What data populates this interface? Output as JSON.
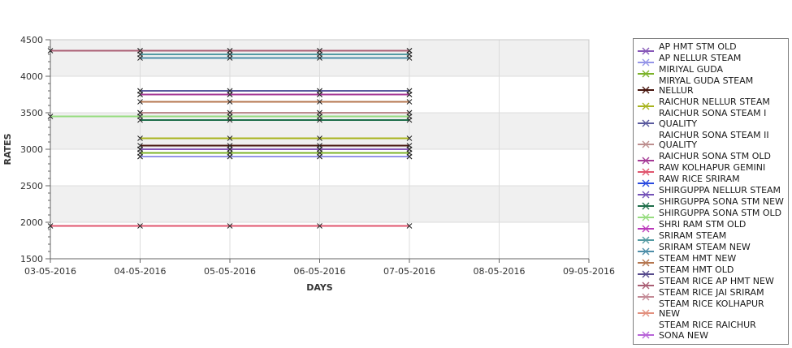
{
  "page": {
    "background": "#ffffff"
  },
  "chart_data": {
    "type": "line",
    "title": "",
    "xlabel": "DAYS",
    "ylabel": "RATES",
    "x_tick_labels": [
      "03-05-2016",
      "04-05-2016",
      "05-05-2016",
      "06-05-2016",
      "07-05-2016",
      "08-05-2016",
      "09-05-2016"
    ],
    "y_ticks": [
      1500,
      2000,
      2500,
      3000,
      3500,
      4000,
      4500
    ],
    "ylim": [
      1500,
      4500
    ],
    "y_minor_step": 100,
    "grid": true,
    "band_fill": "#f0f0f0",
    "bands": [
      [
        4000,
        4500
      ],
      [
        3000,
        3500
      ],
      [
        2000,
        2500
      ]
    ],
    "gridline_color": "#dcdcdc",
    "axis_color": "#666666",
    "plot_border_color": "#c9c9c9",
    "legend_position": "right",
    "marker": "x",
    "marker_color": "#222222",
    "render_order": "reverse",
    "series": [
      {
        "name": "AP HMT STM OLD",
        "color": "#8757b8",
        "value": 3000,
        "dates": [
          "04-05-2016",
          "05-05-2016",
          "06-05-2016",
          "07-05-2016"
        ]
      },
      {
        "name": "AP NELLUR STEAM",
        "color": "#9595e8",
        "value": 2900,
        "dates": [
          "04-05-2016",
          "05-05-2016",
          "06-05-2016",
          "07-05-2016"
        ]
      },
      {
        "name": "MIRIYAL GUDA",
        "color": "#7cb32a",
        "value": 2950,
        "dates": [
          "04-05-2016",
          "05-05-2016",
          "06-05-2016",
          "07-05-2016"
        ]
      },
      {
        "name": "MIRYAL GUDA STEAM NELLUR",
        "color": "#47150d",
        "value": 3050,
        "dates": [
          "04-05-2016",
          "05-05-2016",
          "06-05-2016",
          "07-05-2016"
        ]
      },
      {
        "name": "RAICHUR NELLUR STEAM",
        "color": "#a8b41e",
        "value": 3150,
        "dates": [
          "04-05-2016",
          "05-05-2016",
          "06-05-2016",
          "07-05-2016"
        ]
      },
      {
        "name": "RAICHUR SONA STEAM I QUALITY",
        "color": "#5a5a9e",
        "value": 3800,
        "dates": [
          "04-05-2016",
          "05-05-2016",
          "06-05-2016",
          "07-05-2016"
        ]
      },
      {
        "name": "RAICHUR SONA STEAM II QUALITY",
        "color": "#bd8f8f",
        "value": 3500,
        "dates": [
          "04-05-2016",
          "05-05-2016",
          "06-05-2016",
          "07-05-2016"
        ]
      },
      {
        "name": "RAICHUR SONA STM OLD",
        "color": "#a53a96",
        "value": 3750,
        "dates": [
          "04-05-2016",
          "05-05-2016",
          "06-05-2016",
          "07-05-2016"
        ]
      },
      {
        "name": "RAW KOLHAPUR GEMINI",
        "color": "#e0556e",
        "value": 1950,
        "dates": [
          "03-05-2016",
          "04-05-2016",
          "05-05-2016",
          "06-05-2016",
          "07-05-2016"
        ]
      },
      {
        "name": "RAW RICE SRIRAM",
        "color": "#2a4ae0",
        "value": 2900,
        "dates": [
          "04-05-2016",
          "05-05-2016",
          "06-05-2016",
          "07-05-2016"
        ]
      },
      {
        "name": "SHIRGUPPA NELLUR STEAM",
        "color": "#7452b8",
        "value": 3000,
        "dates": [
          "04-05-2016",
          "05-05-2016",
          "06-05-2016",
          "07-05-2016"
        ]
      },
      {
        "name": "SHIRGUPPA SONA STM NEW",
        "color": "#1e6e4a",
        "value": 3400,
        "dates": [
          "04-05-2016",
          "05-05-2016",
          "06-05-2016",
          "07-05-2016"
        ]
      },
      {
        "name": "SHIRGUPPA SONA STM OLD",
        "color": "#97dd80",
        "value": 3450,
        "dates": [
          "03-05-2016",
          "04-05-2016",
          "05-05-2016",
          "06-05-2016",
          "07-05-2016"
        ]
      },
      {
        "name": "SHRI RAM STM OLD",
        "color": "#bb3abb",
        "value": 3750,
        "dates": [
          "04-05-2016",
          "05-05-2016",
          "06-05-2016",
          "07-05-2016"
        ]
      },
      {
        "name": "SRIRAM STEAM",
        "color": "#539aa2",
        "value": 4300,
        "dates": [
          "04-05-2016",
          "05-05-2016",
          "06-05-2016",
          "07-05-2016"
        ]
      },
      {
        "name": "SRIRAM STEAM NEW",
        "color": "#4e8ea8",
        "value": 4250,
        "dates": [
          "04-05-2016",
          "05-05-2016",
          "06-05-2016",
          "07-05-2016"
        ]
      },
      {
        "name": "STEAM HMT NEW",
        "color": "#b5764f",
        "value": 3650,
        "dates": [
          "04-05-2016",
          "05-05-2016",
          "06-05-2016",
          "07-05-2016"
        ]
      },
      {
        "name": "STEAM HMT OLD",
        "color": "#564a8c",
        "value": 3800,
        "dates": [
          "04-05-2016",
          "05-05-2016",
          "06-05-2016",
          "07-05-2016"
        ]
      },
      {
        "name": "STEAM RICE AP HMT NEW",
        "color": "#aa5e74",
        "value": 4350,
        "dates": [
          "03-05-2016",
          "04-05-2016",
          "05-05-2016",
          "06-05-2016",
          "07-05-2016"
        ]
      },
      {
        "name": "STEAM RICE JAI SRIRAM",
        "color": "#c48a96",
        "value": 4350,
        "dates": [
          "04-05-2016",
          "05-05-2016",
          "06-05-2016",
          "07-05-2016"
        ]
      },
      {
        "name": "STEAM RICE KOLHAPUR NEW",
        "color": "#e2907e",
        "value": 3500,
        "dates": [
          "04-05-2016",
          "05-05-2016",
          "06-05-2016",
          "07-05-2016"
        ]
      },
      {
        "name": "STEAM RICE RAICHUR SONA NEW",
        "color": "#b864d8",
        "value": 3000,
        "dates": [
          "04-05-2016",
          "05-05-2016",
          "06-05-2016",
          "07-05-2016"
        ]
      }
    ]
  }
}
